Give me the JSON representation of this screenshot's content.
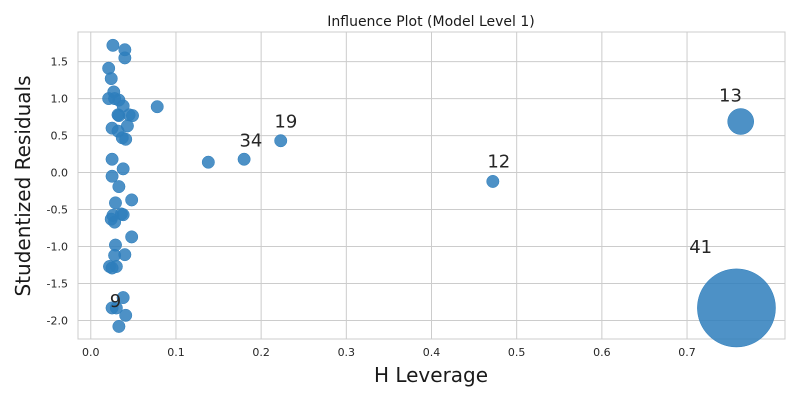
{
  "chart_data": {
    "type": "scatter",
    "title": "Influence Plot (Model Level 1)",
    "xlabel": "H Leverage",
    "ylabel": "Studentized Residuals",
    "xlim": [
      -0.015,
      0.815
    ],
    "ylim": [
      -2.25,
      1.9
    ],
    "xticks": [
      0.0,
      0.1,
      0.2,
      0.3,
      0.4,
      0.5,
      0.6,
      0.7
    ],
    "xtick_labels": [
      "0.0",
      "0.1",
      "0.2",
      "0.3",
      "0.4",
      "0.5",
      "0.6",
      "0.7"
    ],
    "yticks": [
      1.5,
      1.0,
      0.5,
      0.0,
      -0.5,
      -1.0,
      -1.5,
      -2.0
    ],
    "ytick_labels": [
      "1.5",
      "1.0",
      "0.5",
      "0.0",
      "-0.5",
      "-1.0",
      "-1.5",
      "-2.0"
    ],
    "grid": true,
    "marker_color": "#2e7ebc",
    "points": [
      {
        "x": 0.026,
        "y": 1.72,
        "size": 1
      },
      {
        "x": 0.04,
        "y": 1.66,
        "size": 1
      },
      {
        "x": 0.04,
        "y": 1.55,
        "size": 1
      },
      {
        "x": 0.021,
        "y": 1.41,
        "size": 1
      },
      {
        "x": 0.024,
        "y": 1.27,
        "size": 1
      },
      {
        "x": 0.027,
        "y": 1.09,
        "size": 1
      },
      {
        "x": 0.021,
        "y": 1.0,
        "size": 1
      },
      {
        "x": 0.028,
        "y": 1.0,
        "size": 1
      },
      {
        "x": 0.033,
        "y": 0.98,
        "size": 1
      },
      {
        "x": 0.038,
        "y": 0.9,
        "size": 1
      },
      {
        "x": 0.078,
        "y": 0.89,
        "size": 1
      },
      {
        "x": 0.032,
        "y": 0.78,
        "size": 1
      },
      {
        "x": 0.033,
        "y": 0.77,
        "size": 1
      },
      {
        "x": 0.045,
        "y": 0.78,
        "size": 1
      },
      {
        "x": 0.049,
        "y": 0.77,
        "size": 1
      },
      {
        "x": 0.025,
        "y": 0.6,
        "size": 1
      },
      {
        "x": 0.032,
        "y": 0.56,
        "size": 1
      },
      {
        "x": 0.043,
        "y": 0.63,
        "size": 1
      },
      {
        "x": 0.037,
        "y": 0.47,
        "size": 1
      },
      {
        "x": 0.041,
        "y": 0.45,
        "size": 1
      },
      {
        "x": 0.025,
        "y": 0.18,
        "size": 1
      },
      {
        "x": 0.138,
        "y": 0.14,
        "size": 1
      },
      {
        "x": 0.18,
        "y": 0.18,
        "size": 1
      },
      {
        "x": 0.223,
        "y": 0.43,
        "size": 1
      },
      {
        "x": 0.038,
        "y": 0.05,
        "size": 1
      },
      {
        "x": 0.025,
        "y": -0.05,
        "size": 1
      },
      {
        "x": 0.033,
        "y": -0.19,
        "size": 1
      },
      {
        "x": 0.472,
        "y": -0.12,
        "size": 1
      },
      {
        "x": 0.763,
        "y": 0.69,
        "size": 2.1
      },
      {
        "x": 0.048,
        "y": -0.37,
        "size": 1
      },
      {
        "x": 0.029,
        "y": -0.41,
        "size": 1
      },
      {
        "x": 0.036,
        "y": -0.56,
        "size": 1
      },
      {
        "x": 0.038,
        "y": -0.57,
        "size": 1
      },
      {
        "x": 0.026,
        "y": -0.58,
        "size": 1
      },
      {
        "x": 0.024,
        "y": -0.63,
        "size": 1
      },
      {
        "x": 0.028,
        "y": -0.67,
        "size": 1
      },
      {
        "x": 0.048,
        "y": -0.87,
        "size": 1
      },
      {
        "x": 0.029,
        "y": -0.98,
        "size": 1
      },
      {
        "x": 0.028,
        "y": -1.12,
        "size": 1
      },
      {
        "x": 0.04,
        "y": -1.11,
        "size": 1
      },
      {
        "x": 0.022,
        "y": -1.27,
        "size": 1
      },
      {
        "x": 0.025,
        "y": -1.29,
        "size": 1
      },
      {
        "x": 0.03,
        "y": -1.27,
        "size": 1
      },
      {
        "x": 0.038,
        "y": -1.69,
        "size": 1
      },
      {
        "x": 0.025,
        "y": -1.83,
        "size": 1
      },
      {
        "x": 0.03,
        "y": -1.83,
        "size": 1
      },
      {
        "x": 0.041,
        "y": -1.93,
        "size": 1
      },
      {
        "x": 0.033,
        "y": -2.08,
        "size": 1
      },
      {
        "x": 0.758,
        "y": -1.83,
        "size": 6.3
      }
    ],
    "annotations": [
      {
        "text": "13",
        "x": 0.751,
        "y": 0.96
      },
      {
        "text": "19",
        "x": 0.229,
        "y": 0.61
      },
      {
        "text": "34",
        "x": 0.188,
        "y": 0.35
      },
      {
        "text": "12",
        "x": 0.479,
        "y": 0.07
      },
      {
        "text": "41",
        "x": 0.716,
        "y": -1.09
      },
      {
        "text": "9",
        "x": 0.029,
        "y": -1.82
      }
    ]
  }
}
